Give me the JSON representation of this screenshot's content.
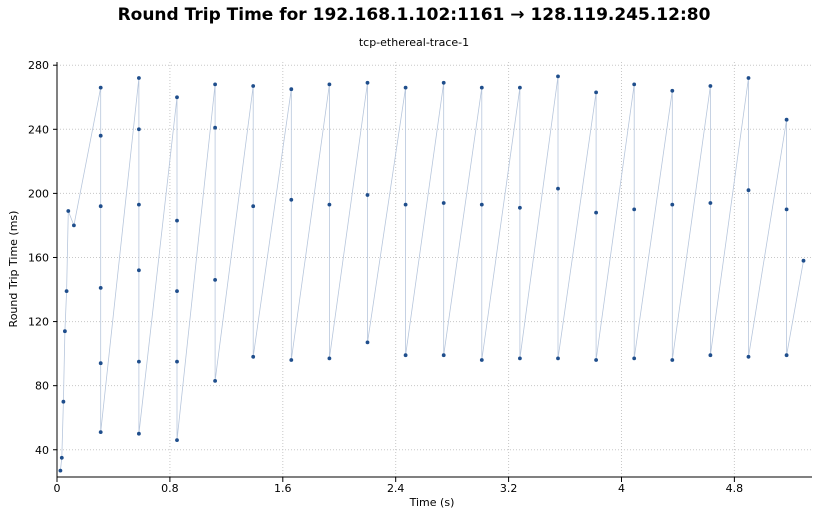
{
  "chart_data": {
    "type": "scatter",
    "title": "Round Trip Time for 192.168.1.102:1161 → 128.119.245.12:80",
    "subtitle": "tcp-ethereal-trace-1",
    "xlabel": "Time (s)",
    "ylabel": "Round Trip Time (ms)",
    "xlim": [
      0,
      5.35
    ],
    "ylim": [
      23,
      282
    ],
    "xticks": [
      0,
      0.8,
      1.6,
      2.4,
      3.2,
      4,
      4.8
    ],
    "xtick_labels": [
      "0",
      "0.8",
      "1.6",
      "2.4",
      "3.2",
      "4",
      "4.8"
    ],
    "yticks": [
      40,
      80,
      120,
      160,
      200,
      240,
      280
    ],
    "grid": true,
    "connect_points": true,
    "colors": {
      "point": "#1f4e8c",
      "line": "#b7c6dc",
      "grid": "#c8c8c8"
    },
    "points": [
      [
        0.024,
        27
      ],
      [
        0.034,
        35
      ],
      [
        0.045,
        70
      ],
      [
        0.056,
        114
      ],
      [
        0.068,
        139
      ],
      [
        0.08,
        189
      ],
      [
        0.12,
        180
      ],
      [
        0.31,
        266
      ],
      [
        0.31,
        236
      ],
      [
        0.31,
        192
      ],
      [
        0.31,
        141
      ],
      [
        0.31,
        94
      ],
      [
        0.31,
        51
      ],
      [
        0.58,
        272
      ],
      [
        0.58,
        240
      ],
      [
        0.58,
        193
      ],
      [
        0.58,
        152
      ],
      [
        0.58,
        95
      ],
      [
        0.58,
        50
      ],
      [
        0.85,
        260
      ],
      [
        0.85,
        183
      ],
      [
        0.85,
        139
      ],
      [
        0.85,
        95
      ],
      [
        0.85,
        46
      ],
      [
        1.12,
        268
      ],
      [
        1.12,
        241
      ],
      [
        1.12,
        146
      ],
      [
        1.12,
        83
      ],
      [
        1.39,
        267
      ],
      [
        1.39,
        192
      ],
      [
        1.39,
        98
      ],
      [
        1.66,
        265
      ],
      [
        1.66,
        196
      ],
      [
        1.66,
        96
      ],
      [
        1.93,
        268
      ],
      [
        1.93,
        193
      ],
      [
        1.93,
        97
      ],
      [
        2.2,
        269
      ],
      [
        2.2,
        199
      ],
      [
        2.2,
        107
      ],
      [
        2.47,
        266
      ],
      [
        2.47,
        193
      ],
      [
        2.47,
        99
      ],
      [
        2.74,
        269
      ],
      [
        2.74,
        194
      ],
      [
        2.74,
        99
      ],
      [
        3.01,
        266
      ],
      [
        3.01,
        193
      ],
      [
        3.01,
        96
      ],
      [
        3.28,
        266
      ],
      [
        3.28,
        191
      ],
      [
        3.28,
        97
      ],
      [
        3.55,
        273
      ],
      [
        3.55,
        203
      ],
      [
        3.55,
        97
      ],
      [
        3.82,
        263
      ],
      [
        3.82,
        188
      ],
      [
        3.82,
        96
      ],
      [
        4.09,
        268
      ],
      [
        4.09,
        190
      ],
      [
        4.09,
        97
      ],
      [
        4.36,
        264
      ],
      [
        4.36,
        193
      ],
      [
        4.36,
        96
      ],
      [
        4.63,
        267
      ],
      [
        4.63,
        194
      ],
      [
        4.63,
        99
      ],
      [
        4.9,
        272
      ],
      [
        4.9,
        202
      ],
      [
        4.9,
        98
      ],
      [
        5.17,
        246
      ],
      [
        5.17,
        190
      ],
      [
        5.17,
        99
      ],
      [
        5.29,
        158
      ]
    ]
  }
}
